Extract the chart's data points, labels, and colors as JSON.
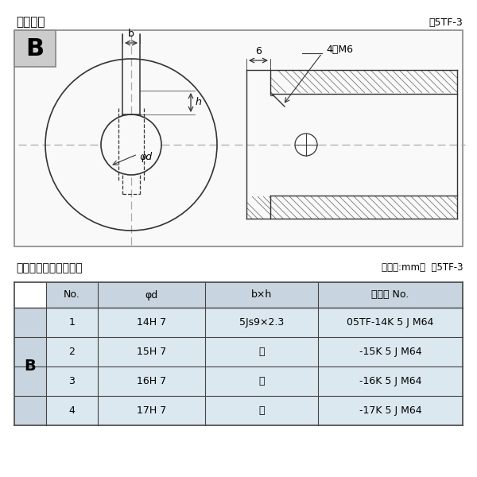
{
  "title_left": "軸穴形状",
  "title_right": "図5TF-3",
  "section_label": "B",
  "dim_b": "b",
  "dim_h": "h",
  "dim_phi_d": "φd",
  "dim_6": "6",
  "dim_4m6": "4－M6",
  "table_title_left": "軸穴形状コード一覧表",
  "table_title_right": "（単位:mm）  表5TF-3",
  "table_header": [
    "No.",
    "φd",
    "b×h",
    "コード No."
  ],
  "table_row_label": "B",
  "table_rows": [
    [
      "1",
      "14H 7",
      "5Js9×2.3",
      "05TF-14K 5 J M64"
    ],
    [
      "2",
      "15H 7",
      "〃",
      "-15K 5 J M64"
    ],
    [
      "3",
      "16H 7",
      "〃",
      "-16K 5 J M64"
    ],
    [
      "4",
      "17H 7",
      "〃",
      "-17K 5 J M64"
    ]
  ],
  "bg_color": "#ffffff",
  "table_header_bg": "#c8d4df",
  "table_row_bg": "#dce8f0",
  "table_border_color": "#444444",
  "line_color": "#333333",
  "cl_color": "#aaaaaa",
  "hatch_color": "#777777"
}
